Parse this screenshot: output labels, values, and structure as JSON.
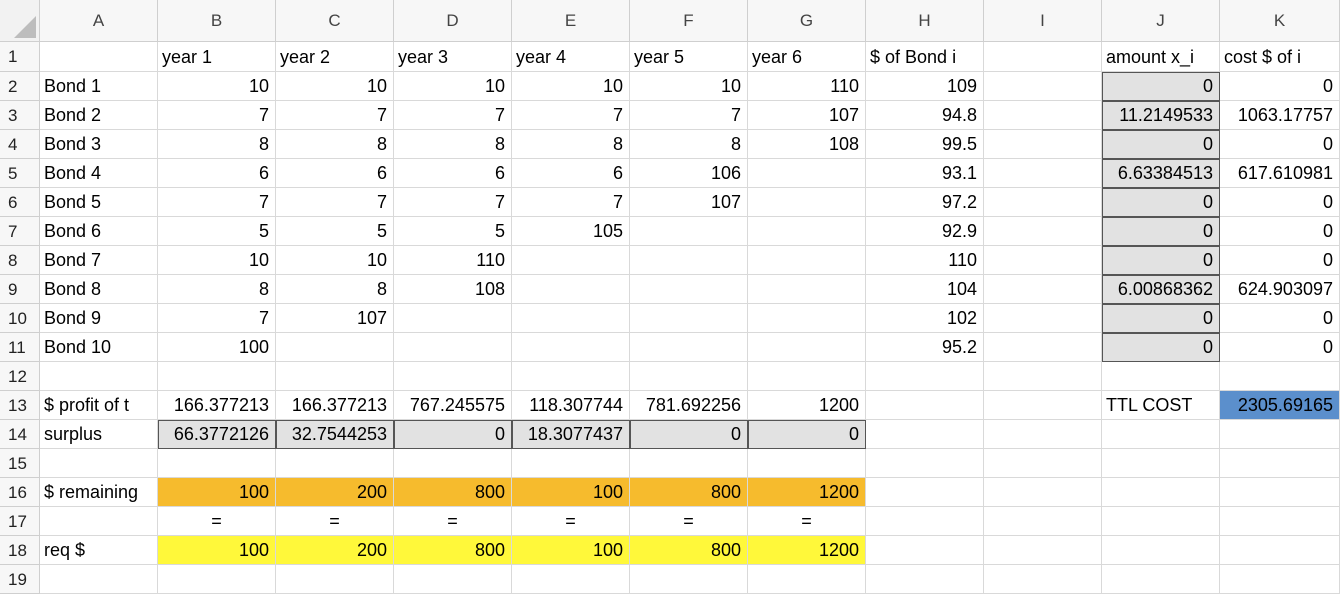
{
  "columns": [
    "A",
    "B",
    "C",
    "D",
    "E",
    "F",
    "G",
    "H",
    "I",
    "J",
    "K"
  ],
  "rows": [
    "1",
    "2",
    "3",
    "4",
    "5",
    "6",
    "7",
    "8",
    "9",
    "10",
    "11",
    "12",
    "13",
    "14",
    "15",
    "16",
    "17",
    "18",
    "19"
  ],
  "colors": {
    "input_cells": "#e2e2e2",
    "remaining_row": "#f6bb2d",
    "required_row": "#fff83a",
    "total_cost": "#5b8fcc"
  },
  "cells": [
    {
      "r": 0,
      "c": 1,
      "v": "year 1",
      "a": "l"
    },
    {
      "r": 0,
      "c": 2,
      "v": "year 2",
      "a": "l"
    },
    {
      "r": 0,
      "c": 3,
      "v": "year 3",
      "a": "l"
    },
    {
      "r": 0,
      "c": 4,
      "v": "year 4",
      "a": "l"
    },
    {
      "r": 0,
      "c": 5,
      "v": "year 5",
      "a": "l"
    },
    {
      "r": 0,
      "c": 6,
      "v": "year 6",
      "a": "l"
    },
    {
      "r": 0,
      "c": 7,
      "v": "$ of Bond i",
      "a": "l"
    },
    {
      "r": 0,
      "c": 9,
      "v": "amount x_i",
      "a": "l"
    },
    {
      "r": 0,
      "c": 10,
      "v": "cost $ of i",
      "a": "l"
    },
    {
      "r": 1,
      "c": 0,
      "v": "Bond 1",
      "a": "l"
    },
    {
      "r": 1,
      "c": 1,
      "v": "10",
      "a": "r"
    },
    {
      "r": 1,
      "c": 2,
      "v": "10",
      "a": "r"
    },
    {
      "r": 1,
      "c": 3,
      "v": "10",
      "a": "r"
    },
    {
      "r": 1,
      "c": 4,
      "v": "10",
      "a": "r"
    },
    {
      "r": 1,
      "c": 5,
      "v": "10",
      "a": "r"
    },
    {
      "r": 1,
      "c": 6,
      "v": "110",
      "a": "r"
    },
    {
      "r": 1,
      "c": 7,
      "v": "109",
      "a": "r"
    },
    {
      "r": 1,
      "c": 9,
      "v": "0",
      "a": "r",
      "bg": "input_cells"
    },
    {
      "r": 1,
      "c": 10,
      "v": "0",
      "a": "r"
    },
    {
      "r": 2,
      "c": 0,
      "v": "Bond 2",
      "a": "l"
    },
    {
      "r": 2,
      "c": 1,
      "v": "7",
      "a": "r"
    },
    {
      "r": 2,
      "c": 2,
      "v": "7",
      "a": "r"
    },
    {
      "r": 2,
      "c": 3,
      "v": "7",
      "a": "r"
    },
    {
      "r": 2,
      "c": 4,
      "v": "7",
      "a": "r"
    },
    {
      "r": 2,
      "c": 5,
      "v": "7",
      "a": "r"
    },
    {
      "r": 2,
      "c": 6,
      "v": "107",
      "a": "r"
    },
    {
      "r": 2,
      "c": 7,
      "v": "94.8",
      "a": "r"
    },
    {
      "r": 2,
      "c": 9,
      "v": "11.2149533",
      "a": "r",
      "bg": "input_cells"
    },
    {
      "r": 2,
      "c": 10,
      "v": "1063.17757",
      "a": "r"
    },
    {
      "r": 3,
      "c": 0,
      "v": "Bond 3",
      "a": "l"
    },
    {
      "r": 3,
      "c": 1,
      "v": "8",
      "a": "r"
    },
    {
      "r": 3,
      "c": 2,
      "v": "8",
      "a": "r"
    },
    {
      "r": 3,
      "c": 3,
      "v": "8",
      "a": "r"
    },
    {
      "r": 3,
      "c": 4,
      "v": "8",
      "a": "r"
    },
    {
      "r": 3,
      "c": 5,
      "v": "8",
      "a": "r"
    },
    {
      "r": 3,
      "c": 6,
      "v": "108",
      "a": "r"
    },
    {
      "r": 3,
      "c": 7,
      "v": "99.5",
      "a": "r"
    },
    {
      "r": 3,
      "c": 9,
      "v": "0",
      "a": "r",
      "bg": "input_cells"
    },
    {
      "r": 3,
      "c": 10,
      "v": "0",
      "a": "r"
    },
    {
      "r": 4,
      "c": 0,
      "v": "Bond 4",
      "a": "l"
    },
    {
      "r": 4,
      "c": 1,
      "v": "6",
      "a": "r"
    },
    {
      "r": 4,
      "c": 2,
      "v": "6",
      "a": "r"
    },
    {
      "r": 4,
      "c": 3,
      "v": "6",
      "a": "r"
    },
    {
      "r": 4,
      "c": 4,
      "v": "6",
      "a": "r"
    },
    {
      "r": 4,
      "c": 5,
      "v": "106",
      "a": "r"
    },
    {
      "r": 4,
      "c": 7,
      "v": "93.1",
      "a": "r"
    },
    {
      "r": 4,
      "c": 9,
      "v": "6.63384513",
      "a": "r",
      "bg": "input_cells"
    },
    {
      "r": 4,
      "c": 10,
      "v": "617.610981",
      "a": "r"
    },
    {
      "r": 5,
      "c": 0,
      "v": "Bond 5",
      "a": "l"
    },
    {
      "r": 5,
      "c": 1,
      "v": "7",
      "a": "r"
    },
    {
      "r": 5,
      "c": 2,
      "v": "7",
      "a": "r"
    },
    {
      "r": 5,
      "c": 3,
      "v": "7",
      "a": "r"
    },
    {
      "r": 5,
      "c": 4,
      "v": "7",
      "a": "r"
    },
    {
      "r": 5,
      "c": 5,
      "v": "107",
      "a": "r"
    },
    {
      "r": 5,
      "c": 7,
      "v": "97.2",
      "a": "r"
    },
    {
      "r": 5,
      "c": 9,
      "v": "0",
      "a": "r",
      "bg": "input_cells"
    },
    {
      "r": 5,
      "c": 10,
      "v": "0",
      "a": "r"
    },
    {
      "r": 6,
      "c": 0,
      "v": "Bond 6",
      "a": "l"
    },
    {
      "r": 6,
      "c": 1,
      "v": "5",
      "a": "r"
    },
    {
      "r": 6,
      "c": 2,
      "v": "5",
      "a": "r"
    },
    {
      "r": 6,
      "c": 3,
      "v": "5",
      "a": "r"
    },
    {
      "r": 6,
      "c": 4,
      "v": "105",
      "a": "r"
    },
    {
      "r": 6,
      "c": 7,
      "v": "92.9",
      "a": "r"
    },
    {
      "r": 6,
      "c": 9,
      "v": "0",
      "a": "r",
      "bg": "input_cells"
    },
    {
      "r": 6,
      "c": 10,
      "v": "0",
      "a": "r"
    },
    {
      "r": 7,
      "c": 0,
      "v": "Bond 7",
      "a": "l"
    },
    {
      "r": 7,
      "c": 1,
      "v": "10",
      "a": "r"
    },
    {
      "r": 7,
      "c": 2,
      "v": "10",
      "a": "r"
    },
    {
      "r": 7,
      "c": 3,
      "v": "110",
      "a": "r"
    },
    {
      "r": 7,
      "c": 7,
      "v": "110",
      "a": "r"
    },
    {
      "r": 7,
      "c": 9,
      "v": "0",
      "a": "r",
      "bg": "input_cells"
    },
    {
      "r": 7,
      "c": 10,
      "v": "0",
      "a": "r"
    },
    {
      "r": 8,
      "c": 0,
      "v": "Bond 8",
      "a": "l"
    },
    {
      "r": 8,
      "c": 1,
      "v": "8",
      "a": "r"
    },
    {
      "r": 8,
      "c": 2,
      "v": "8",
      "a": "r"
    },
    {
      "r": 8,
      "c": 3,
      "v": "108",
      "a": "r"
    },
    {
      "r": 8,
      "c": 7,
      "v": "104",
      "a": "r"
    },
    {
      "r": 8,
      "c": 9,
      "v": "6.00868362",
      "a": "r",
      "bg": "input_cells"
    },
    {
      "r": 8,
      "c": 10,
      "v": "624.903097",
      "a": "r"
    },
    {
      "r": 9,
      "c": 0,
      "v": "Bond 9",
      "a": "l"
    },
    {
      "r": 9,
      "c": 1,
      "v": "7",
      "a": "r"
    },
    {
      "r": 9,
      "c": 2,
      "v": "107",
      "a": "r"
    },
    {
      "r": 9,
      "c": 7,
      "v": "102",
      "a": "r"
    },
    {
      "r": 9,
      "c": 9,
      "v": "0",
      "a": "r",
      "bg": "input_cells"
    },
    {
      "r": 9,
      "c": 10,
      "v": "0",
      "a": "r"
    },
    {
      "r": 10,
      "c": 0,
      "v": "Bond 10",
      "a": "l"
    },
    {
      "r": 10,
      "c": 1,
      "v": "100",
      "a": "r"
    },
    {
      "r": 10,
      "c": 7,
      "v": "95.2",
      "a": "r"
    },
    {
      "r": 10,
      "c": 9,
      "v": "0",
      "a": "r",
      "bg": "input_cells"
    },
    {
      "r": 10,
      "c": 10,
      "v": "0",
      "a": "r"
    },
    {
      "r": 12,
      "c": 0,
      "v": "$ profit of t",
      "a": "l"
    },
    {
      "r": 12,
      "c": 1,
      "v": "166.377213",
      "a": "r"
    },
    {
      "r": 12,
      "c": 2,
      "v": "166.377213",
      "a": "r"
    },
    {
      "r": 12,
      "c": 3,
      "v": "767.245575",
      "a": "r"
    },
    {
      "r": 12,
      "c": 4,
      "v": "118.307744",
      "a": "r"
    },
    {
      "r": 12,
      "c": 5,
      "v": "781.692256",
      "a": "r"
    },
    {
      "r": 12,
      "c": 6,
      "v": "1200",
      "a": "r"
    },
    {
      "r": 12,
      "c": 9,
      "v": "TTL COST",
      "a": "l"
    },
    {
      "r": 12,
      "c": 10,
      "v": "2305.69165",
      "a": "r",
      "bg": "total_cost"
    },
    {
      "r": 13,
      "c": 0,
      "v": "surplus",
      "a": "l"
    },
    {
      "r": 13,
      "c": 1,
      "v": "66.3772126",
      "a": "r",
      "bg": "input_cells"
    },
    {
      "r": 13,
      "c": 2,
      "v": "32.7544253",
      "a": "r",
      "bg": "input_cells"
    },
    {
      "r": 13,
      "c": 3,
      "v": "0",
      "a": "r",
      "bg": "input_cells"
    },
    {
      "r": 13,
      "c": 4,
      "v": "18.3077437",
      "a": "r",
      "bg": "input_cells"
    },
    {
      "r": 13,
      "c": 5,
      "v": "0",
      "a": "r",
      "bg": "input_cells"
    },
    {
      "r": 13,
      "c": 6,
      "v": "0",
      "a": "r",
      "bg": "input_cells"
    },
    {
      "r": 15,
      "c": 0,
      "v": "$ remaining",
      "a": "l"
    },
    {
      "r": 15,
      "c": 1,
      "v": "100",
      "a": "r",
      "bg": "remaining_row"
    },
    {
      "r": 15,
      "c": 2,
      "v": "200",
      "a": "r",
      "bg": "remaining_row"
    },
    {
      "r": 15,
      "c": 3,
      "v": "800",
      "a": "r",
      "bg": "remaining_row"
    },
    {
      "r": 15,
      "c": 4,
      "v": "100",
      "a": "r",
      "bg": "remaining_row"
    },
    {
      "r": 15,
      "c": 5,
      "v": "800",
      "a": "r",
      "bg": "remaining_row"
    },
    {
      "r": 15,
      "c": 6,
      "v": "1200",
      "a": "r",
      "bg": "remaining_row"
    },
    {
      "r": 16,
      "c": 1,
      "v": "=",
      "a": "c"
    },
    {
      "r": 16,
      "c": 2,
      "v": "=",
      "a": "c"
    },
    {
      "r": 16,
      "c": 3,
      "v": "=",
      "a": "c"
    },
    {
      "r": 16,
      "c": 4,
      "v": "=",
      "a": "c"
    },
    {
      "r": 16,
      "c": 5,
      "v": "=",
      "a": "c"
    },
    {
      "r": 16,
      "c": 6,
      "v": "=",
      "a": "c"
    },
    {
      "r": 17,
      "c": 0,
      "v": "req $",
      "a": "l"
    },
    {
      "r": 17,
      "c": 1,
      "v": "100",
      "a": "r",
      "bg": "required_row"
    },
    {
      "r": 17,
      "c": 2,
      "v": "200",
      "a": "r",
      "bg": "required_row"
    },
    {
      "r": 17,
      "c": 3,
      "v": "800",
      "a": "r",
      "bg": "required_row"
    },
    {
      "r": 17,
      "c": 4,
      "v": "100",
      "a": "r",
      "bg": "required_row"
    },
    {
      "r": 17,
      "c": 5,
      "v": "800",
      "a": "r",
      "bg": "required_row"
    },
    {
      "r": 17,
      "c": 6,
      "v": "1200",
      "a": "r",
      "bg": "required_row"
    }
  ]
}
